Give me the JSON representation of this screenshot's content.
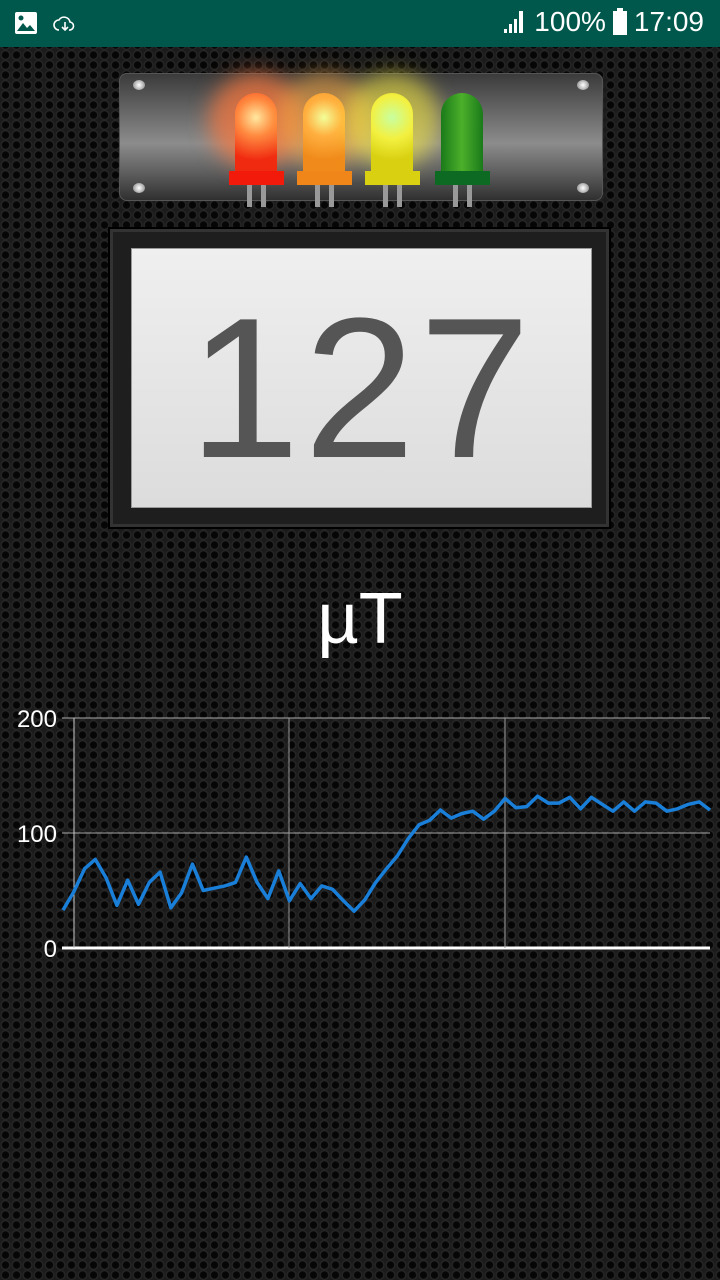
{
  "status_bar": {
    "battery": "100%",
    "time": "17:09",
    "icons": [
      "image-icon",
      "cloud-download-icon",
      "signal-icon",
      "battery-icon"
    ],
    "background": "#00584c"
  },
  "leds": [
    {
      "color": "red",
      "lit": true
    },
    {
      "color": "orange",
      "lit": true
    },
    {
      "color": "yellow",
      "lit": true
    },
    {
      "color": "green",
      "lit": false
    }
  ],
  "reading": {
    "value": "127",
    "unit": "µT"
  },
  "chart_data": {
    "type": "line",
    "title": "",
    "xlabel": "",
    "ylabel": "",
    "yticks": [
      "0",
      "100",
      "200"
    ],
    "ylim": [
      0,
      200
    ],
    "grid": true,
    "line_color": "#1a7fd8",
    "series": [
      {
        "values": [
          33,
          49,
          69,
          77,
          61,
          37,
          59,
          38,
          57,
          66,
          35,
          48,
          73,
          50,
          52,
          54,
          57,
          79,
          57,
          43,
          67,
          41,
          56,
          43,
          54,
          51,
          41,
          32,
          42,
          57,
          69,
          80,
          95,
          107,
          111,
          120,
          113,
          117,
          119,
          112,
          119,
          130,
          122,
          123,
          132,
          126,
          126,
          131,
          121,
          131,
          125,
          119,
          127,
          119,
          127,
          126,
          119,
          121,
          125,
          127,
          120
        ]
      }
    ]
  }
}
